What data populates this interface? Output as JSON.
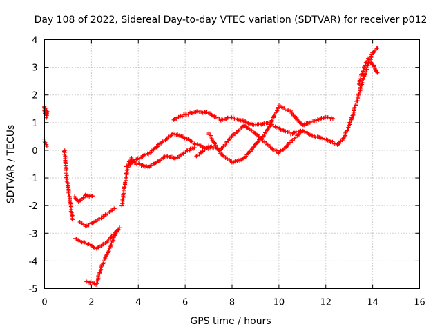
{
  "chart_data": {
    "type": "scatter",
    "title": "Day 108 of 2022, Sidereal Day-to-day VTEC variation (SDTVAR) for receiver p012",
    "xlabel": "GPS time / hours",
    "ylabel": "SDTVAR / TECUs",
    "xlim": [
      0,
      16
    ],
    "ylim": [
      -5,
      4
    ],
    "xticks": [
      0,
      2,
      4,
      6,
      8,
      10,
      12,
      14,
      16
    ],
    "xtick_labels": [
      "0",
      "2",
      "4",
      "6",
      "8",
      "10",
      "12",
      "14",
      "16"
    ],
    "yticks": [
      -5,
      -4,
      -3,
      -2,
      -1,
      0,
      1,
      2,
      3,
      4
    ],
    "ytick_labels": [
      "-5",
      "-4",
      "-3",
      "-2",
      "-1",
      "0",
      "1",
      "2",
      "3",
      "4"
    ],
    "grid": true,
    "marker": "+",
    "color": "#ff0000",
    "series": [
      {
        "name": "seg-start-high",
        "x": [
          0.0,
          0.03,
          0.06,
          0.09,
          0.12
        ],
        "y": [
          1.6,
          1.3,
          1.5,
          1.2,
          1.4
        ]
      },
      {
        "name": "seg-start-low",
        "x": [
          0.0,
          0.05,
          0.1
        ],
        "y": [
          0.4,
          0.25,
          0.15
        ]
      },
      {
        "name": "seg-drop",
        "x": [
          0.85,
          0.9,
          0.95,
          1.0,
          1.05,
          1.1,
          1.15,
          1.2
        ],
        "y": [
          0.0,
          -0.5,
          -1.0,
          -1.3,
          -1.6,
          -1.9,
          -2.2,
          -2.5
        ]
      },
      {
        "name": "seg-dip-upper",
        "x": [
          1.3,
          1.45,
          1.6,
          1.75,
          1.9,
          2.05
        ],
        "y": [
          -1.7,
          -1.85,
          -1.75,
          -1.6,
          -1.65,
          -1.65
        ]
      },
      {
        "name": "seg-dip-mid",
        "x": [
          1.5,
          1.8,
          2.1,
          2.4,
          2.7,
          3.0
        ],
        "y": [
          -2.6,
          -2.75,
          -2.6,
          -2.45,
          -2.3,
          -2.1
        ]
      },
      {
        "name": "seg-dip-low",
        "x": [
          1.3,
          1.6,
          1.9,
          2.2,
          2.5,
          2.8,
          3.1
        ],
        "y": [
          -3.2,
          -3.3,
          -3.4,
          -3.55,
          -3.4,
          -3.2,
          -2.9
        ]
      },
      {
        "name": "seg-bottom",
        "x": [
          1.8,
          2.0,
          2.2,
          2.4,
          2.6,
          2.8,
          3.0,
          3.2
        ],
        "y": [
          -4.75,
          -4.8,
          -4.85,
          -4.3,
          -3.9,
          -3.5,
          -3.1,
          -2.8
        ]
      },
      {
        "name": "seg-climb",
        "x": [
          3.3,
          3.4,
          3.5,
          3.6,
          3.7,
          3.8
        ],
        "y": [
          -2.0,
          -1.4,
          -0.9,
          -0.5,
          -0.3,
          -0.4
        ]
      },
      {
        "name": "seg-plateau-a",
        "x": [
          3.6,
          4.0,
          4.4,
          4.8,
          5.2,
          5.6,
          6.0,
          6.4
        ],
        "y": [
          -0.4,
          -0.5,
          -0.6,
          -0.45,
          -0.2,
          -0.3,
          -0.05,
          0.1
        ]
      },
      {
        "name": "seg-plateau-b",
        "x": [
          3.5,
          4.0,
          4.5,
          5.0,
          5.5,
          6.0,
          6.5,
          7.0
        ],
        "y": [
          -0.6,
          -0.3,
          -0.1,
          0.3,
          0.6,
          0.45,
          0.2,
          0.05
        ]
      },
      {
        "name": "seg-upper-hump",
        "x": [
          5.5,
          6.0,
          6.5,
          7.0,
          7.5,
          8.0,
          8.5,
          9.0,
          9.5,
          10.0,
          10.5,
          11.0
        ],
        "y": [
          1.1,
          1.3,
          1.4,
          1.35,
          1.1,
          1.2,
          1.05,
          0.9,
          1.0,
          0.8,
          0.6,
          0.7
        ]
      },
      {
        "name": "seg-lower-wave",
        "x": [
          6.5,
          7.0,
          7.5,
          8.0,
          8.5,
          9.0,
          9.5,
          10.0,
          10.5,
          11.0,
          11.5,
          12.0,
          12.5
        ],
        "y": [
          -0.2,
          0.15,
          0.0,
          0.5,
          0.9,
          0.6,
          0.2,
          -0.1,
          0.3,
          0.7,
          0.5,
          0.4,
          0.2
        ]
      },
      {
        "name": "seg-cross-wave",
        "x": [
          7.0,
          7.5,
          8.0,
          8.5,
          9.0,
          9.5,
          10.0,
          10.5,
          11.0,
          11.5,
          12.0,
          12.3
        ],
        "y": [
          0.6,
          -0.1,
          -0.45,
          -0.3,
          0.2,
          0.7,
          1.6,
          1.4,
          0.9,
          1.05,
          1.2,
          1.15
        ]
      },
      {
        "name": "seg-final-rise",
        "x": [
          12.5,
          12.8,
          13.0,
          13.2,
          13.4,
          13.6,
          13.8,
          14.0,
          14.2
        ],
        "y": [
          0.2,
          0.5,
          0.9,
          1.4,
          2.0,
          2.6,
          3.1,
          3.5,
          3.7
        ]
      },
      {
        "name": "seg-final-spread",
        "x": [
          13.4,
          13.6,
          13.8,
          14.0,
          14.2
        ],
        "y": [
          2.4,
          2.9,
          3.3,
          3.1,
          2.8
        ]
      }
    ]
  }
}
